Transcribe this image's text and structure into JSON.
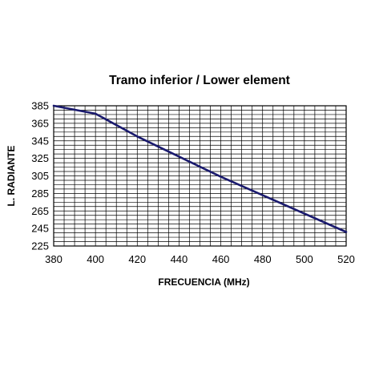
{
  "chart_data": {
    "type": "line",
    "title": "Tramo inferior / Lower element",
    "xlabel": "FRECUENCIA (MHz)",
    "ylabel": "L. RADIANTE",
    "xlim": [
      380,
      520
    ],
    "ylim": [
      225,
      385
    ],
    "x_ticks": [
      380,
      400,
      420,
      440,
      460,
      480,
      500,
      520
    ],
    "y_ticks": [
      225,
      245,
      265,
      285,
      305,
      325,
      345,
      365,
      385
    ],
    "grid": true,
    "legend": "none",
    "series": [
      {
        "color": "#1a1a6e",
        "x": [
          380,
          400,
          420,
          440,
          460,
          480,
          500,
          520
        ],
        "y": [
          385,
          376,
          350,
          327,
          304,
          283,
          262,
          241
        ]
      }
    ]
  }
}
